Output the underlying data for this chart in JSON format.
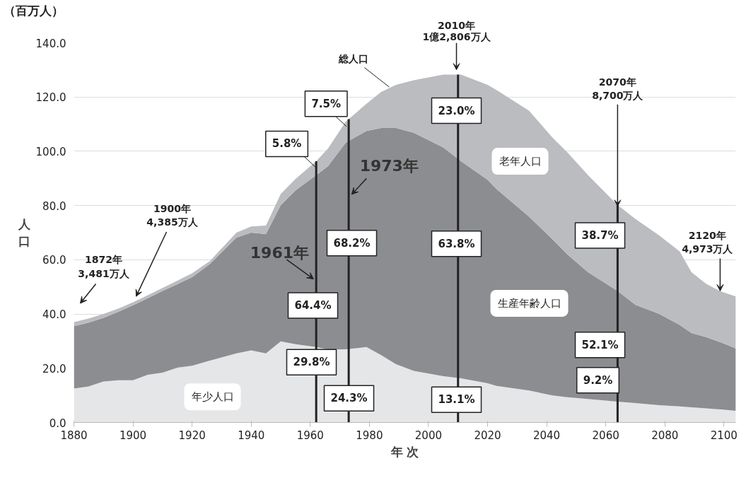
{
  "chart_data": {
    "type": "area",
    "stacked": true,
    "xlabel": "年 次",
    "ylabel": "人口",
    "x": [
      1880,
      1885,
      1890,
      1895,
      1900,
      1905,
      1910,
      1915,
      1920,
      1926,
      1935,
      1940,
      1945,
      1950,
      1955,
      1962,
      1966,
      1972,
      1979,
      1984,
      1989,
      1995,
      2005,
      2011,
      2020,
      2023,
      2034,
      2042,
      2047,
      2054,
      2064,
      2070,
      2078,
      2085,
      2089,
      2094,
      2099,
      2104
    ],
    "series": [
      {
        "color": "#e5e6e8",
        "values": [
          12.5,
          13.3,
          15.1,
          15.6,
          15.6,
          17.6,
          18.4,
          20.2,
          20.9,
          22.8,
          25.5,
          26.6,
          25.5,
          29.9,
          28.9,
          27.8,
          26.9,
          27.0,
          27.8,
          24.8,
          21.5,
          19.0,
          17.1,
          16.3,
          14.5,
          13.5,
          11.8,
          10.0,
          9.3,
          8.7,
          7.7,
          7.2,
          6.4,
          5.9,
          5.6,
          5.2,
          4.8,
          4.3
        ]
      },
      {
        "color": "#8c8d91",
        "values": [
          23.0,
          23.5,
          23.5,
          25.2,
          27.6,
          28.2,
          30.1,
          30.8,
          32.7,
          35.6,
          42.7,
          43.4,
          44.0,
          50.3,
          56.7,
          63.4,
          67.6,
          76.2,
          79.7,
          83.8,
          87.1,
          87.8,
          84.3,
          80.0,
          75.0,
          72.6,
          64.1,
          57.5,
          52.7,
          46.7,
          40.8,
          36.2,
          33.7,
          30.1,
          27.4,
          26.3,
          24.7,
          23.0
        ]
      },
      {
        "color": "#bbbcc0",
        "values": [
          1.5,
          1.5,
          1.4,
          1.2,
          1.1,
          1.1,
          1.1,
          1.3,
          1.4,
          1.1,
          1.8,
          2.3,
          3.1,
          4.1,
          4.2,
          5.1,
          6.5,
          7.7,
          10.0,
          13.3,
          15.9,
          19.4,
          26.9,
          32.0,
          35.0,
          36.5,
          39.1,
          37.5,
          37.6,
          35.8,
          31.7,
          31.7,
          28.9,
          27.1,
          22.4,
          19.6,
          18.8,
          19.2
        ]
      }
    ],
    "xlim": [
      1880,
      2104
    ],
    "xticks": [
      1880,
      1900,
      1920,
      1940,
      1960,
      1980,
      2000,
      2020,
      2040,
      2060,
      2080,
      2100
    ],
    "ylim": [
      0,
      140
    ],
    "yticks": [
      {
        "value": 0,
        "label": "0.0"
      },
      {
        "value": 20,
        "label": "20.0"
      },
      {
        "value": 40,
        "label": "40.0"
      },
      {
        "value": 60,
        "label": "60.0"
      },
      {
        "value": 80,
        "label": "80.0"
      },
      {
        "value": 100,
        "label": "100.0"
      },
      {
        "value": 120,
        "label": "120.0"
      },
      {
        "value": 140,
        "label": "140.0"
      }
    ],
    "grid": "y",
    "ref_lines": [
      {
        "axis": "x",
        "value": 1962,
        "color": "#222222"
      },
      {
        "axis": "x",
        "value": 1973,
        "color": "#222222"
      },
      {
        "axis": "x",
        "value": 2010,
        "color": "#222222"
      },
      {
        "axis": "x",
        "value": 2064,
        "color": "#222222"
      }
    ],
    "annotations": [
      "（百万人）",
      "1872年\n3,481万人",
      "1900年\n4,385万人",
      {
        "text": "1961年",
        "x": 1961.1,
        "y": 52.9
      },
      {
        "text": "1973年",
        "x": 1974.0,
        "y": 84.1
      },
      "2010年\n1億2,806万人",
      {
        "text": "2070年\n8,700万人",
        "x": 2064.0,
        "y": 79.7
      },
      {
        "text": "2120年\n4,973万人",
        "x": 2098.7,
        "y": 48.5
      },
      {
        "text": "総人口",
        "x": 1986.7,
        "y": 123.7
      },
      {
        "text": "5.8%",
        "x": 1962.1,
        "y": 93.8
      },
      {
        "text": "7.5%",
        "x": 1972.3,
        "y": 109.1
      },
      "23.0%",
      "68.2%",
      "63.8%",
      "64.4%",
      "29.8%",
      "24.3%",
      "13.1%",
      "38.7%",
      "52.1%",
      "9.2%",
      "年少人口",
      "生産年齢人口",
      "老年人口"
    ]
  }
}
